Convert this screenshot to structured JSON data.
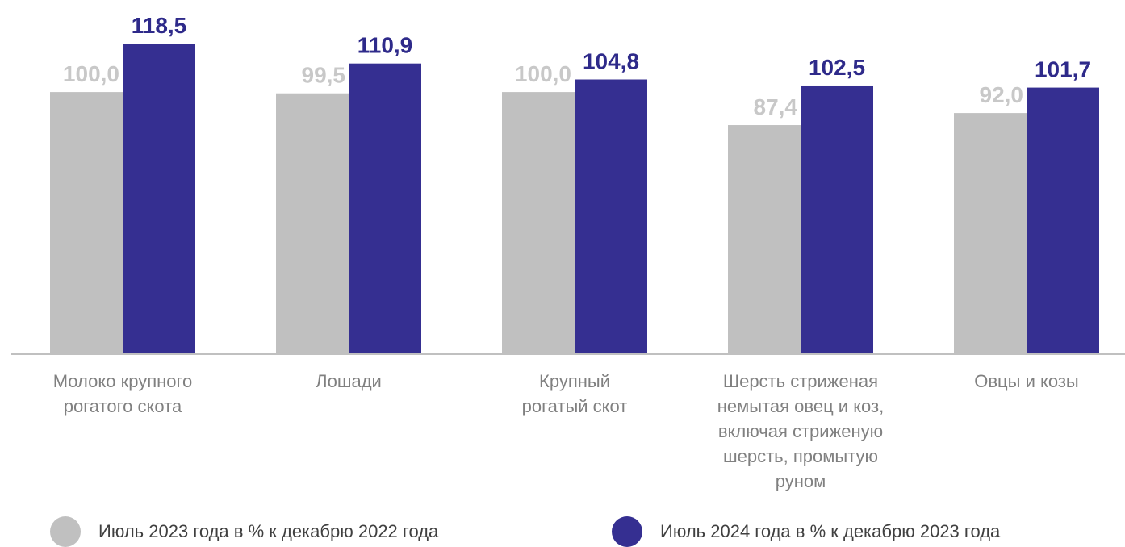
{
  "chart_data": {
    "type": "bar",
    "categories": [
      [
        "Молоко крупного",
        "рогатого скота"
      ],
      [
        "Лошади"
      ],
      [
        "Крупный",
        "рогатый скот"
      ],
      [
        "Шерсть стриженая",
        "немытая овец и коз,",
        "включая стриженую",
        "шерсть, промытую",
        "руном"
      ],
      [
        "Овцы и козы"
      ]
    ],
    "series": [
      {
        "name": "Июль 2023 года в % к декабрю 2022 года",
        "values": [
          100.0,
          99.5,
          100.0,
          87.4,
          92.0
        ],
        "labels": [
          "100,0",
          "99,5",
          "100,0",
          "87,4",
          "92,0"
        ],
        "color": "#c0c0c0",
        "label_color": "#c8c8c8"
      },
      {
        "name": "Июль 2024 года в % к декабрю 2023 года",
        "values": [
          118.5,
          110.9,
          104.8,
          102.5,
          101.7
        ],
        "labels": [
          "118,5",
          "110,9",
          "104,8",
          "102,5",
          "101,7"
        ],
        "color": "#352f91",
        "label_color": "#2e2a8a"
      }
    ],
    "ylim": [
      0,
      118.5
    ],
    "axis_color": "#c0c0c0",
    "grid": false,
    "legend_position": "bottom"
  }
}
